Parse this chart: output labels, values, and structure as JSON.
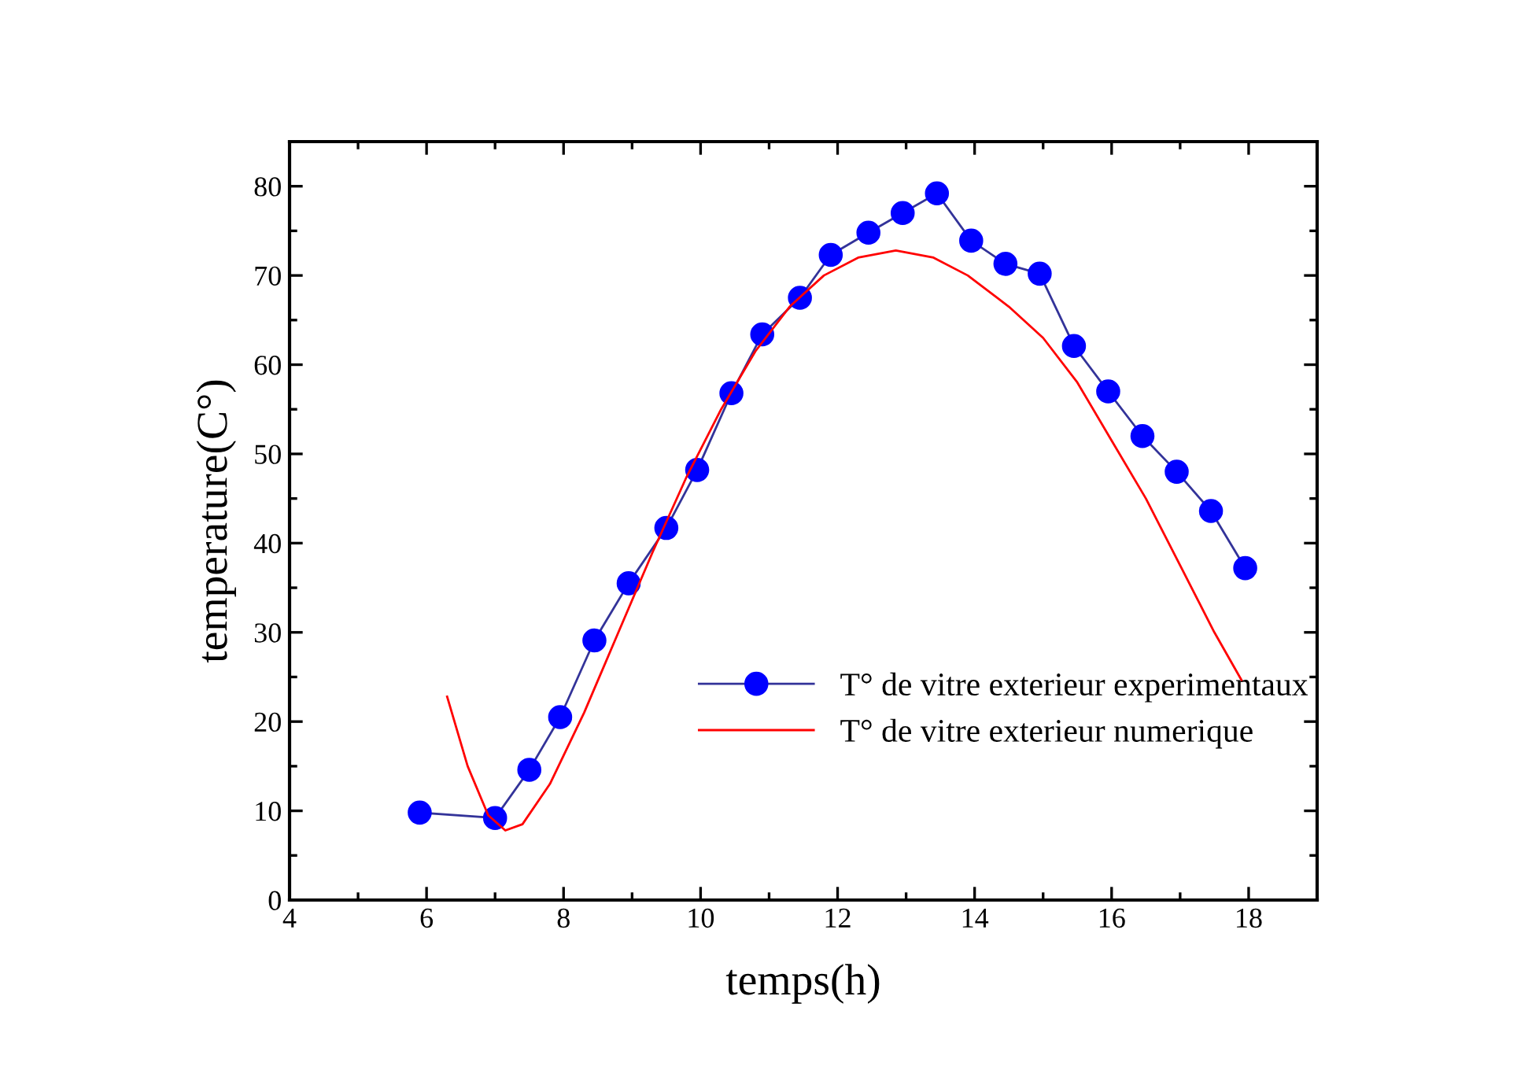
{
  "chart_data": {
    "type": "line",
    "xlabel": "temps(h)",
    "ylabel": "temperature(C°)",
    "xlim": [
      4,
      19
    ],
    "xticks": [
      4,
      6,
      8,
      10,
      12,
      14,
      16,
      18
    ],
    "ylim": [
      0,
      85
    ],
    "yticks": [
      0,
      10,
      20,
      30,
      40,
      50,
      60,
      70,
      80
    ],
    "grid": false,
    "legend": "right",
    "series": [
      {
        "name": "T° de vitre exterieur experimentaux",
        "color": "#0000ff",
        "marker": "circle",
        "x": [
          5.9,
          7.0,
          7.5,
          7.95,
          8.45,
          8.95,
          9.5,
          9.95,
          10.45,
          10.9,
          11.45,
          11.9,
          12.45,
          12.95,
          13.45,
          13.95,
          14.45,
          14.95,
          15.45,
          15.95,
          16.45,
          16.95,
          17.45,
          17.95
        ],
        "values": [
          9.8,
          9.2,
          14.6,
          20.5,
          29.1,
          35.5,
          41.7,
          48.2,
          56.8,
          63.4,
          67.5,
          72.3,
          74.8,
          77,
          79.2,
          73.9,
          71.3,
          70.2,
          62.1,
          57,
          52,
          48,
          43.6,
          37.2
        ]
      },
      {
        "name": "T° de vitre exterieur numerique",
        "color": "#ff0000",
        "marker": "none",
        "x": [
          6.3,
          6.6,
          6.9,
          7.15,
          7.4,
          7.8,
          8.3,
          8.8,
          9.3,
          9.8,
          10.3,
          10.8,
          11.3,
          11.8,
          12.3,
          12.85,
          13.4,
          13.9,
          14.5,
          15.0,
          15.5,
          16.0,
          16.5,
          17.0,
          17.5,
          17.9
        ],
        "values": [
          22.8,
          15,
          9.5,
          7.8,
          8.5,
          13,
          21,
          30,
          39,
          47.5,
          55,
          61.5,
          66.5,
          70,
          72,
          72.8,
          72,
          70,
          66.5,
          63,
          58,
          51.5,
          45,
          37.5,
          30,
          24.6
        ]
      }
    ]
  }
}
